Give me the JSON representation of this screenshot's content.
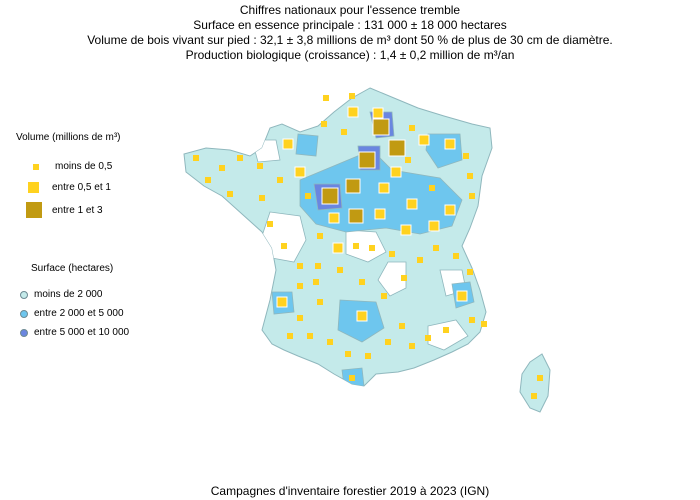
{
  "header": {
    "title": "Chiffres nationaux pour l'essence tremble",
    "line_surface": "Surface en essence principale : 131 000 ± 18 000 hectares",
    "line_volume": "Volume de bois vivant sur pied : 32,1 ± 3,8 millions de m³ dont 50 % de plus de 30 cm de diamètre.",
    "line_production": "Production biologique (croissance) : 1,4 ± 0,2 million de m³/an"
  },
  "legend_volume": {
    "title": "Volume (millions de m³)",
    "items": [
      {
        "label": "moins de 0,5",
        "color": "#ffd21f"
      },
      {
        "label": "entre 0,5 et 1",
        "color": "#ffd21f"
      },
      {
        "label": "entre 1 et 3",
        "color": "#c19a12"
      }
    ]
  },
  "legend_surface": {
    "title": "Surface (hectares)",
    "items": [
      {
        "label": "moins de 2 000",
        "color": "#c4eaea"
      },
      {
        "label": "entre 2 000 et 5 000",
        "color": "#6ec6ee"
      },
      {
        "label": "entre 5 000 et 10 000",
        "color": "#6a86e0"
      }
    ]
  },
  "colors": {
    "no_data": "#ffffff",
    "low": "#c4eaea",
    "mid": "#6ec6ee",
    "high": "#6a86e0",
    "border": "#8fb7bd"
  },
  "footer": "Campagnes d'inventaire forestier 2019 à 2023 (IGN)"
}
